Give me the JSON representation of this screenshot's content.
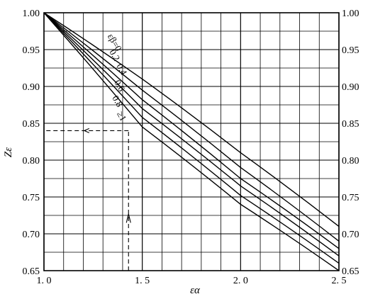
{
  "chart_data": {
    "type": "line",
    "title": "",
    "xlabel": "εα",
    "ylabel": "Zε",
    "xlim": [
      1.0,
      2.5
    ],
    "ylim": [
      0.65,
      1.0
    ],
    "x_ticks": [
      1.0,
      1.5,
      2.0,
      2.5
    ],
    "x_tick_labels": [
      "1. 0",
      "1. 5",
      "2. 0",
      "2. 5"
    ],
    "y_ticks": [
      0.65,
      0.7,
      0.75,
      0.8,
      0.85,
      0.9,
      0.95,
      1.0
    ],
    "y_tick_labels": [
      "0.65",
      "0.70",
      "0.75",
      "0.80",
      "0.85",
      "0.90",
      "0.95",
      "1.00"
    ],
    "grid": true,
    "series": [
      {
        "name": "εβ=0",
        "x": [
          1.0,
          1.5,
          2.0,
          2.5
        ],
        "y": [
          1.0,
          0.91,
          0.81,
          0.71
        ]
      },
      {
        "name": "0.2",
        "x": [
          1.0,
          1.5,
          2.0,
          2.5
        ],
        "y": [
          1.0,
          0.895,
          0.79,
          0.69
        ]
      },
      {
        "name": "0.4",
        "x": [
          1.0,
          1.5,
          2.0,
          2.5
        ],
        "y": [
          1.0,
          0.882,
          0.775,
          0.68
        ]
      },
      {
        "name": "0.6",
        "x": [
          1.0,
          1.5,
          2.0,
          2.5
        ],
        "y": [
          1.0,
          0.87,
          0.765,
          0.67
        ]
      },
      {
        "name": "0.8",
        "x": [
          1.0,
          1.5,
          2.0,
          2.5
        ],
        "y": [
          1.0,
          0.858,
          0.752,
          0.66
        ]
      },
      {
        "name": "≥1",
        "x": [
          1.0,
          1.5,
          2.0,
          2.5
        ],
        "y": [
          1.0,
          0.845,
          0.74,
          0.65
        ]
      }
    ],
    "example_path": {
      "x": 1.43,
      "y": 0.84
    }
  }
}
